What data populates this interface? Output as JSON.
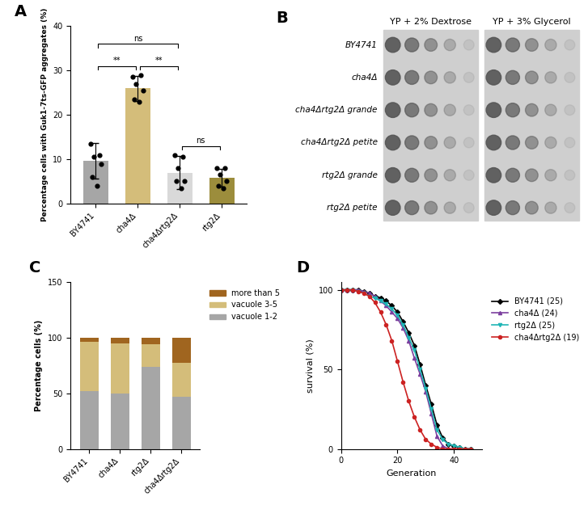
{
  "chart_data": [
    {
      "type": "bar",
      "title": "A",
      "y_label": "Percentage cells with Guk1-7ts-GFP aggregates (%)",
      "categories": [
        "BY4741",
        "cha4Δ",
        "cha4Δrtg2Δ",
        "rtg2Δ"
      ],
      "values": [
        9.7,
        26,
        7,
        5.8
      ],
      "errors": [
        4,
        2.8,
        3.8,
        2
      ],
      "points": [
        [
          13.5,
          11,
          10.5,
          9,
          6,
          4
        ],
        [
          28.5,
          29,
          27,
          25.5,
          23.5,
          23
        ],
        [
          11,
          10.5,
          8,
          5,
          5,
          3.5
        ],
        [
          8,
          8,
          6.5,
          5,
          4,
          3.5
        ]
      ],
      "colors": [
        "#a6a6a6",
        "#d4bd7a",
        "#d9d9d9",
        "#9c8d3c"
      ],
      "ylim": [
        0,
        40
      ],
      "yticks": [
        0,
        10,
        20,
        30,
        40
      ],
      "annotations": [
        {
          "text": "**",
          "between": [
            0,
            1
          ]
        },
        {
          "text": "**",
          "between": [
            1,
            2
          ]
        },
        {
          "text": "ns",
          "between": [
            2,
            3
          ]
        },
        {
          "text": "ns",
          "between": [
            0,
            2
          ]
        }
      ]
    },
    {
      "type": "bar",
      "title": "C",
      "stacked": true,
      "legend": "right",
      "y_label": "Percentage cells (%)",
      "categories": [
        "BY4741",
        "cha4Δ",
        "rtg2Δ",
        "cha4Δrtg2Δ"
      ],
      "series": [
        {
          "name": "vacuole 1-2",
          "color": "#a6a6a6",
          "values": [
            52,
            50,
            74,
            47
          ]
        },
        {
          "name": "vacuole 3-5",
          "color": "#d4bd7a",
          "values": [
            44,
            45,
            20,
            30
          ]
        },
        {
          "name": "more than 5",
          "color": "#a0651f",
          "values": [
            4,
            5,
            6,
            23
          ]
        }
      ],
      "ylim": [
        0,
        150
      ],
      "yticks": [
        0,
        50,
        100,
        150
      ]
    },
    {
      "type": "line",
      "title": "D",
      "legend": "right",
      "x_label": "Generation",
      "y_label": "survival (%)",
      "x": [
        0,
        2,
        4,
        6,
        8,
        10,
        12,
        14,
        16,
        18,
        20,
        22,
        24,
        26,
        28,
        30,
        32,
        34,
        36,
        38,
        40,
        42,
        44,
        46
      ],
      "series": [
        {
          "name": "BY4741 (25)",
          "color": "#000000",
          "marker": "diamond",
          "values": [
            100,
            100,
            100,
            100,
            99,
            98,
            96,
            95,
            93,
            90,
            86,
            80,
            73,
            65,
            53,
            40,
            28,
            15,
            7,
            3,
            2,
            1,
            0,
            0
          ]
        },
        {
          "name": "cha4Δ (24)",
          "color": "#7b3f9e",
          "marker": "triangle",
          "values": [
            100,
            100,
            100,
            100,
            99,
            98,
            96,
            93,
            90,
            86,
            82,
            76,
            68,
            57,
            47,
            36,
            22,
            8,
            2,
            0,
            0,
            0,
            0,
            0
          ]
        },
        {
          "name": "rtg2Δ (25)",
          "color": "#1fb5b5",
          "marker": "triangle_down",
          "values": [
            100,
            100,
            100,
            99,
            98,
            96,
            95,
            93,
            91,
            88,
            84,
            78,
            70,
            62,
            50,
            38,
            25,
            12,
            6,
            3,
            2,
            1,
            0,
            0
          ]
        },
        {
          "name": "cha4Δrtg2Δ (19)",
          "color": "#cc2222",
          "marker": "circle",
          "values": [
            100,
            100,
            100,
            99,
            98,
            96,
            92,
            86,
            78,
            68,
            55,
            42,
            30,
            20,
            12,
            6,
            3,
            1,
            0,
            0,
            0,
            0,
            0,
            0
          ]
        }
      ],
      "xlim": [
        0,
        50
      ],
      "xticks": [
        0,
        20,
        40
      ],
      "ylim": [
        0,
        105
      ],
      "yticks": [
        0,
        50,
        100
      ]
    }
  ],
  "spot_assay": {
    "title": "B",
    "media": [
      "YP + 2% Dextrose",
      "YP + 3% Glycerol"
    ],
    "strains": [
      "BY4741",
      "cha4Δ",
      "cha4Δrtg2Δ grande",
      "cha4Δrtg2Δ petite",
      "rtg2Δ grande",
      "rtg2Δ petite"
    ]
  }
}
